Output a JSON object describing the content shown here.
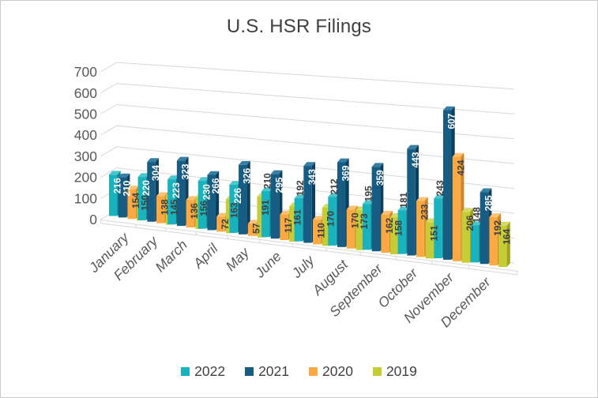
{
  "title": "U.S. HSR Filings",
  "chart_data": {
    "type": "bar",
    "style": "3d-clustered-column",
    "title": "U.S. HSR Filings",
    "categories": [
      "January",
      "February",
      "March",
      "April",
      "May",
      "June",
      "July",
      "August",
      "September",
      "October",
      "November",
      "December"
    ],
    "series": [
      {
        "name": "2022",
        "color": "#19b2bd",
        "color_top": "#4cc6ce",
        "color_side": "#0d8791",
        "label_color": "#ffffff",
        "values": [
          216,
          220,
          223,
          230,
          226,
          210,
          192,
          212,
          195,
          181,
          243,
          148
        ],
        "label_inside": [
          true,
          true,
          true,
          true,
          true,
          false,
          false,
          false,
          false,
          false,
          false,
          false
        ]
      },
      {
        "name": "2021",
        "color": "#175d83",
        "color_top": "#367fa2",
        "color_side": "#0c3f5e",
        "label_color": "#ffffff",
        "values": [
          210,
          304,
          323,
          266,
          326,
          295,
          343,
          369,
          359,
          443,
          607,
          285
        ]
      },
      {
        "name": "2020",
        "color": "#faa944",
        "color_top": "#fbc175",
        "color_side": "#ce8628",
        "label_color": "#3f3f3f",
        "values": [
          154,
          138,
          136,
          72,
          57,
          117,
          110,
          170,
          162,
          233,
          424,
          192
        ]
      },
      {
        "name": "2019",
        "color": "#c8cc34",
        "color_top": "#d6da62",
        "color_side": "#9ca51e",
        "label_color": "#3f3f3f",
        "values": [
          150,
          145,
          156,
          163,
          191,
          161,
          170,
          173,
          158,
          151,
          206,
          164
        ]
      }
    ],
    "y_axis": {
      "min": 0,
      "max": 700,
      "step": 100,
      "tick_labels": [
        "700",
        "600",
        "500",
        "400",
        "300",
        "200",
        "100",
        "0"
      ]
    },
    "legend_position": "bottom",
    "gridlines": true,
    "colors": {
      "gridline": "#d8d8d8",
      "axis_text": "#595959",
      "data_label_dark": "#3f3f3f",
      "background": "#ffffff"
    }
  }
}
